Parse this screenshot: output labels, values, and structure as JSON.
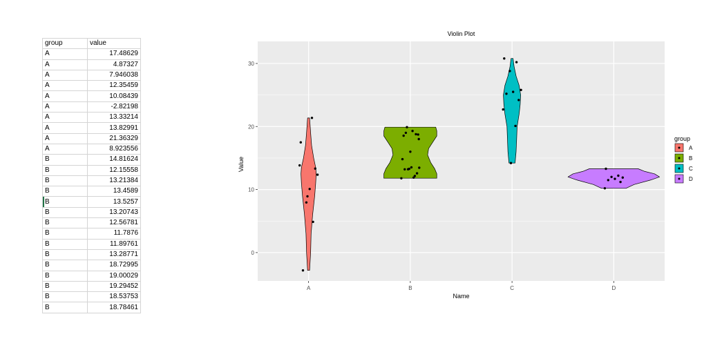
{
  "sheet": {
    "headers": [
      "group",
      "value"
    ],
    "rows": [
      [
        "A",
        "17.48629"
      ],
      [
        "A",
        "4.87327"
      ],
      [
        "A",
        "7.946038"
      ],
      [
        "A",
        "12.35459"
      ],
      [
        "A",
        "10.08439"
      ],
      [
        "A",
        "-2.82198"
      ],
      [
        "A",
        "13.33214"
      ],
      [
        "A",
        "13.82991"
      ],
      [
        "A",
        "21.36329"
      ],
      [
        "A",
        "8.923556"
      ],
      [
        "B",
        "14.81624"
      ],
      [
        "B",
        "12.15558"
      ],
      [
        "B",
        "13.21384"
      ],
      [
        "B",
        "13.4589"
      ],
      [
        "B",
        "13.5257"
      ],
      [
        "B",
        "13.20743"
      ],
      [
        "B",
        "12.56781"
      ],
      [
        "B",
        "11.7876"
      ],
      [
        "B",
        "11.89761"
      ],
      [
        "B",
        "13.28771"
      ],
      [
        "B",
        "18.72995"
      ],
      [
        "B",
        "19.00029"
      ],
      [
        "B",
        "19.29452"
      ],
      [
        "B",
        "18.53753"
      ],
      [
        "B",
        "18.78461"
      ]
    ],
    "selected_row": 14
  },
  "chart_data": {
    "type": "violin",
    "title": "Violin Plot",
    "xlabel": "Name",
    "ylabel": "Value",
    "categories": [
      "A",
      "B",
      "C",
      "D"
    ],
    "ylim": [
      -4.5,
      33.5
    ],
    "yticks": [
      0,
      10,
      20,
      30
    ],
    "legend": {
      "title": "group",
      "position": "right",
      "labels": [
        "A",
        "B",
        "C",
        "D"
      ]
    },
    "colors": [
      "#F8766D",
      "#7CAE00",
      "#00BFC4",
      "#C77CFF"
    ],
    "panel_color": "#EBEBEB",
    "grid": true,
    "points": [
      [
        17.48629,
        4.87327,
        7.946038,
        12.35459,
        10.08439,
        -2.82198,
        13.33214,
        13.82991,
        21.36329,
        8.923556
      ],
      [
        14.81624,
        12.15558,
        13.21384,
        13.4589,
        13.5257,
        13.20743,
        12.56781,
        11.7876,
        11.89761,
        13.28771,
        18.72995,
        19.00029,
        19.29452,
        18.53753,
        18.78461,
        19.9,
        16.0,
        18.0
      ],
      [
        30.8,
        30.2,
        28.8,
        25.8,
        25.5,
        25.2,
        24.2,
        22.7,
        20.1,
        14.2
      ],
      [
        13.3,
        12.2,
        12.0,
        11.9,
        11.7,
        11.5,
        11.2,
        10.2
      ]
    ],
    "violins": [
      {
        "y": [
          -2.82,
          0,
          3,
          6,
          9,
          11,
          12.5,
          13.5,
          15,
          17,
          19,
          21.36
        ],
        "w": [
          0.01,
          0.02,
          0.025,
          0.04,
          0.06,
          0.07,
          0.075,
          0.07,
          0.05,
          0.03,
          0.02,
          0.01
        ]
      },
      {
        "y": [
          11.8,
          12.5,
          13.3,
          14.3,
          15.5,
          16.5,
          17.5,
          18.5,
          19.3,
          19.9
        ],
        "w": [
          0.26,
          0.26,
          0.24,
          0.2,
          0.17,
          0.18,
          0.22,
          0.26,
          0.26,
          0.25
        ]
      },
      {
        "y": [
          14.2,
          16,
          18,
          20,
          22,
          23.5,
          25,
          26.5,
          28,
          29.5,
          30.8
        ],
        "w": [
          0.03,
          0.04,
          0.045,
          0.05,
          0.07,
          0.08,
          0.085,
          0.07,
          0.04,
          0.02,
          0.01
        ]
      },
      {
        "y": [
          10.2,
          10.8,
          11.5,
          12.0,
          12.5,
          12.9,
          13.3
        ],
        "w": [
          0.12,
          0.2,
          0.36,
          0.45,
          0.4,
          0.3,
          0.24
        ]
      }
    ]
  }
}
